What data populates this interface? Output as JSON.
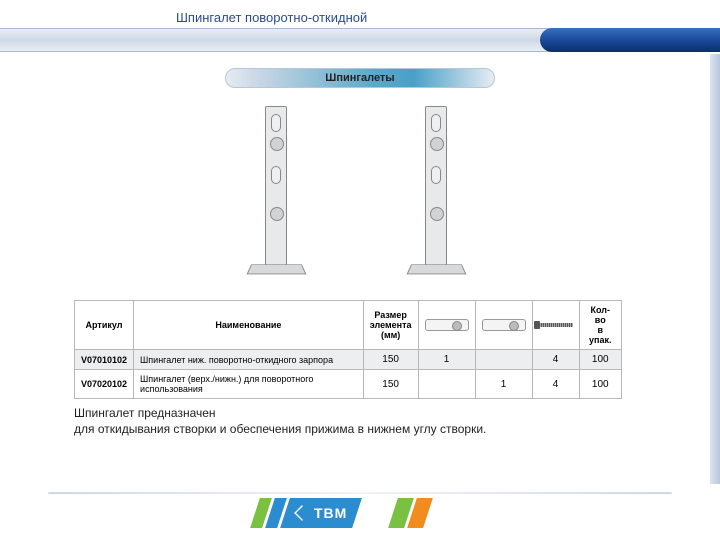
{
  "title": "Шпингалет поворотно-откидной",
  "tab_label": "Шпингалеты",
  "table": {
    "headers": {
      "article": "Артикул",
      "name": "Наименование",
      "size": "Размер\nэлемента\n(мм)",
      "qty": "Кол-во\nв упак."
    },
    "rows": [
      {
        "article": "V07010102",
        "name": "Шпингалет ниж. поворотно-откидного зарпора",
        "size": "150",
        "c1": "1",
        "c2": "",
        "c3": "4",
        "qty": "100"
      },
      {
        "article": "V07020102",
        "name": "Шпингалет (верх./нижн.) для поворотного использования",
        "size": "150",
        "c1": "",
        "c2": "1",
        "c3": "4",
        "qty": "100"
      }
    ]
  },
  "description": {
    "line1": "Шпингалет предназначен",
    "line2": "для откидывания створки и обеспечения прижима в нижнем углу створки."
  },
  "brand": "ТВМ",
  "colors": {
    "accent_blue": "#2b8ccf",
    "accent_green": "#7ac043",
    "accent_orange": "#f28c1e",
    "title_color": "#2a4d8f"
  }
}
